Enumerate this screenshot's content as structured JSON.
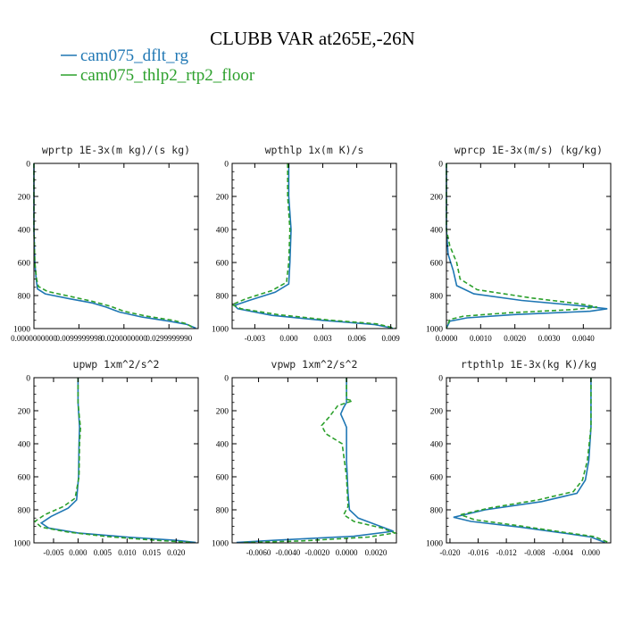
{
  "title": "CLUBB VAR at265E,-26N",
  "legend": [
    {
      "label": "cam075_dflt_rg",
      "color": "#1f77b4",
      "dash": "solid"
    },
    {
      "label": "cam075_thlp2_rtp2_floor",
      "color": "#2ca02c",
      "dash": "dashed"
    }
  ],
  "chart_data": [
    {
      "type": "line",
      "title": "wprtp  1E-3x(m kg)/(s kg)",
      "xlim": [
        0.0,
        0.0365
      ],
      "ylim": [
        1000,
        0
      ],
      "xticks": [
        0.0,
        0.01,
        0.02,
        0.03
      ],
      "xticklabels": [
        "0.0000000000",
        "0.0099999998",
        "0.0200000000",
        "0.0299999990"
      ],
      "yticks": [
        0,
        200,
        400,
        600,
        800,
        1000
      ],
      "yticklabels": [
        "0",
        "200",
        "400",
        "600",
        "800",
        "1000"
      ],
      "series": [
        {
          "name": "cam075_dflt_rg",
          "points": [
            [
              0.0,
              0
            ],
            [
              0.0,
              400
            ],
            [
              0.0002,
              600
            ],
            [
              0.0005,
              700
            ],
            [
              0.0008,
              760
            ],
            [
              0.0025,
              790
            ],
            [
              0.008,
              820
            ],
            [
              0.013,
              845
            ],
            [
              0.016,
              870
            ],
            [
              0.019,
              900
            ],
            [
              0.024,
              930
            ],
            [
              0.03,
              955
            ],
            [
              0.034,
              975
            ],
            [
              0.036,
              998
            ]
          ]
        },
        {
          "name": "cam075_thlp2_rtp2_floor",
          "points": [
            [
              0.0,
              0
            ],
            [
              0.0,
              400
            ],
            [
              0.0002,
              600
            ],
            [
              0.0006,
              700
            ],
            [
              0.001,
              745
            ],
            [
              0.003,
              775
            ],
            [
              0.008,
              805
            ],
            [
              0.013,
              835
            ],
            [
              0.017,
              865
            ],
            [
              0.02,
              895
            ],
            [
              0.025,
              925
            ],
            [
              0.031,
              950
            ],
            [
              0.034,
              972
            ],
            [
              0.0355,
              998
            ]
          ]
        }
      ]
    },
    {
      "type": "line",
      "title": "wpthlp  1x(m K)/s",
      "xlim": [
        -0.005,
        0.0095
      ],
      "ylim": [
        1000,
        0
      ],
      "xticks": [
        -0.003,
        0.0,
        0.003,
        0.006,
        0.009
      ],
      "xticklabels": [
        "-0.003",
        "0.000",
        "0.003",
        "0.006",
        "0.009"
      ],
      "yticks": [
        0,
        200,
        400,
        600,
        800,
        1000
      ],
      "yticklabels": [
        "0",
        "200",
        "400",
        "600",
        "800",
        "1000"
      ],
      "series": [
        {
          "name": "cam075_dflt_rg",
          "points": [
            [
              0.0,
              0
            ],
            [
              0.0,
              200
            ],
            [
              0.0002,
              400
            ],
            [
              0.0001,
              600
            ],
            [
              0.0,
              730
            ],
            [
              -0.0012,
              780
            ],
            [
              -0.0035,
              830
            ],
            [
              -0.0048,
              860
            ],
            [
              -0.0045,
              880
            ],
            [
              -0.0015,
              920
            ],
            [
              0.003,
              950
            ],
            [
              0.0075,
              975
            ],
            [
              0.0092,
              998
            ]
          ]
        },
        {
          "name": "cam075_thlp2_rtp2_floor",
          "points": [
            [
              -0.0001,
              0
            ],
            [
              -0.0001,
              200
            ],
            [
              0.0001,
              400
            ],
            [
              0.0,
              600
            ],
            [
              -0.0002,
              720
            ],
            [
              -0.0015,
              770
            ],
            [
              -0.0038,
              820
            ],
            [
              -0.005,
              855
            ],
            [
              -0.0042,
              880
            ],
            [
              -0.001,
              915
            ],
            [
              0.0035,
              948
            ],
            [
              0.0078,
              972
            ],
            [
              0.0094,
              998
            ]
          ]
        }
      ]
    },
    {
      "type": "line",
      "title": "wprcp  1E-3x(m/s) (kg/kg)",
      "xlim": [
        0.0,
        0.0048
      ],
      "ylim": [
        1000,
        0
      ],
      "xticks": [
        0.0,
        0.001,
        0.002,
        0.003,
        0.004
      ],
      "xticklabels": [
        "0.0000",
        "0.0010",
        "0.0020",
        "0.0030",
        "0.0040"
      ],
      "yticks": [
        0,
        200,
        400,
        600,
        800,
        1000
      ],
      "yticklabels": [
        "0",
        "200",
        "400",
        "600",
        "800",
        "1000"
      ],
      "series": [
        {
          "name": "cam075_dflt_rg",
          "points": [
            [
              0.0,
              0
            ],
            [
              0.0,
              400
            ],
            [
              5e-05,
              550
            ],
            [
              0.0002,
              650
            ],
            [
              0.0003,
              740
            ],
            [
              0.0008,
              790
            ],
            [
              0.0022,
              830
            ],
            [
              0.0038,
              860
            ],
            [
              0.0047,
              880
            ],
            [
              0.0042,
              895
            ],
            [
              0.002,
              915
            ],
            [
              0.0006,
              935
            ],
            [
              0.0001,
              955
            ],
            [
              0.0,
              998
            ]
          ]
        },
        {
          "name": "cam075_thlp2_rtp2_floor",
          "points": [
            [
              0.0,
              0
            ],
            [
              0.0,
              400
            ],
            [
              0.0001,
              500
            ],
            [
              0.0003,
              600
            ],
            [
              0.0004,
              700
            ],
            [
              0.0009,
              765
            ],
            [
              0.0025,
              815
            ],
            [
              0.0039,
              850
            ],
            [
              0.0044,
              870
            ],
            [
              0.0037,
              885
            ],
            [
              0.0018,
              905
            ],
            [
              0.0005,
              925
            ],
            [
              0.0001,
              945
            ],
            [
              0.0,
              998
            ]
          ]
        }
      ]
    },
    {
      "type": "line",
      "title": "upwp  1xm^2/s^2",
      "xlim": [
        -0.009,
        0.0245
      ],
      "ylim": [
        1000,
        0
      ],
      "xticks": [
        -0.005,
        0.0,
        0.005,
        0.01,
        0.015,
        0.02
      ],
      "xticklabels": [
        "-0.005",
        "0.000",
        "0.005",
        "0.010",
        "0.015",
        "0.020"
      ],
      "yticks": [
        0,
        200,
        400,
        600,
        800,
        1000
      ],
      "yticklabels": [
        "0",
        "200",
        "400",
        "600",
        "800",
        "1000"
      ],
      "series": [
        {
          "name": "cam075_dflt_rg",
          "points": [
            [
              0.0,
              0
            ],
            [
              0.0,
              150
            ],
            [
              0.0002,
              250
            ],
            [
              0.0003,
              300
            ],
            [
              0.0002,
              400
            ],
            [
              0.0001,
              600
            ],
            [
              -0.0003,
              740
            ],
            [
              -0.002,
              790
            ],
            [
              -0.0055,
              840
            ],
            [
              -0.0075,
              880
            ],
            [
              -0.006,
              910
            ],
            [
              0.0,
              940
            ],
            [
              0.01,
              965
            ],
            [
              0.02,
              985
            ],
            [
              0.024,
              998
            ]
          ]
        },
        {
          "name": "cam075_thlp2_rtp2_floor",
          "points": [
            [
              0.0,
              0
            ],
            [
              0.0,
              150
            ],
            [
              0.0003,
              250
            ],
            [
              0.0005,
              300
            ],
            [
              0.0003,
              400
            ],
            [
              0.0002,
              600
            ],
            [
              -0.0006,
              730
            ],
            [
              -0.003,
              780
            ],
            [
              -0.0068,
              830
            ],
            [
              -0.0088,
              870
            ],
            [
              -0.0075,
              905
            ],
            [
              -0.002,
              935
            ],
            [
              0.006,
              962
            ],
            [
              0.016,
              985
            ],
            [
              0.0235,
              998
            ]
          ]
        }
      ]
    },
    {
      "type": "line",
      "title": "vpwp  1xm^2/s^2",
      "xlim": [
        -0.0078,
        0.0034
      ],
      "ylim": [
        1000,
        0
      ],
      "xticks": [
        -0.006,
        -0.004,
        -0.002,
        0.0,
        0.002
      ],
      "xticklabels": [
        "-0.0060",
        "-0.0040",
        "-0.0020",
        "0.0000",
        "0.0020"
      ],
      "yticks": [
        0,
        200,
        400,
        600,
        800,
        1000
      ],
      "yticklabels": [
        "0",
        "200",
        "400",
        "600",
        "800",
        "1000"
      ],
      "series": [
        {
          "name": "cam075_dflt_rg",
          "points": [
            [
              0.0,
              0
            ],
            [
              0.0,
              150
            ],
            [
              -0.0002,
              180
            ],
            [
              -0.0004,
              220
            ],
            [
              -0.0002,
              260
            ],
            [
              0.0,
              300
            ],
            [
              0.0,
              500
            ],
            [
              0.0001,
              700
            ],
            [
              0.0002,
              800
            ],
            [
              0.0008,
              850
            ],
            [
              0.002,
              890
            ],
            [
              0.0032,
              930
            ],
            [
              0.0005,
              960
            ],
            [
              -0.005,
              985
            ],
            [
              -0.0075,
              998
            ]
          ]
        },
        {
          "name": "cam075_thlp2_rtp2_floor",
          "points": [
            [
              0.0,
              0
            ],
            [
              0.0,
              130
            ],
            [
              0.0004,
              140
            ],
            [
              -0.0006,
              170
            ],
            [
              -0.0012,
              240
            ],
            [
              -0.0017,
              290
            ],
            [
              -0.0014,
              340
            ],
            [
              -0.0003,
              400
            ],
            [
              0.0,
              600
            ],
            [
              0.0001,
              780
            ],
            [
              -0.0002,
              830
            ],
            [
              0.0005,
              870
            ],
            [
              0.0024,
              910
            ],
            [
              0.0033,
              940
            ],
            [
              0.0015,
              965
            ],
            [
              -0.003,
              988
            ],
            [
              -0.007,
              998
            ]
          ]
        }
      ]
    },
    {
      "type": "line",
      "title": "rtpthlp  1E-3x(kg K)/kg",
      "xlim": [
        -0.0205,
        0.0028
      ],
      "ylim": [
        1000,
        0
      ],
      "xticks": [
        -0.02,
        -0.016,
        -0.012,
        -0.008,
        -0.004,
        0.0
      ],
      "xticklabels": [
        "-0.020",
        "-0.016",
        "-0.012",
        "-0.008",
        "-0.004",
        "0.000"
      ],
      "yticks": [
        0,
        200,
        400,
        600,
        800,
        1000
      ],
      "yticklabels": [
        "0",
        "200",
        "400",
        "600",
        "800",
        "1000"
      ],
      "series": [
        {
          "name": "cam075_dflt_rg",
          "points": [
            [
              0.0,
              0
            ],
            [
              0.0,
              300
            ],
            [
              -0.0003,
              500
            ],
            [
              -0.0008,
              620
            ],
            [
              -0.002,
              700
            ],
            [
              -0.007,
              750
            ],
            [
              -0.015,
              800
            ],
            [
              -0.0195,
              845
            ],
            [
              -0.017,
              870
            ],
            [
              -0.01,
              905
            ],
            [
              -0.004,
              940
            ],
            [
              0.0,
              965
            ],
            [
              0.002,
              998
            ]
          ]
        },
        {
          "name": "cam075_thlp2_rtp2_floor",
          "points": [
            [
              0.0,
              0
            ],
            [
              0.0,
              300
            ],
            [
              -0.0005,
              500
            ],
            [
              -0.0012,
              620
            ],
            [
              -0.0025,
              690
            ],
            [
              -0.0075,
              740
            ],
            [
              -0.0145,
              790
            ],
            [
              -0.0185,
              830
            ],
            [
              -0.0165,
              860
            ],
            [
              -0.01,
              898
            ],
            [
              -0.004,
              935
            ],
            [
              0.0005,
              962
            ],
            [
              0.0025,
              998
            ]
          ]
        }
      ]
    }
  ]
}
